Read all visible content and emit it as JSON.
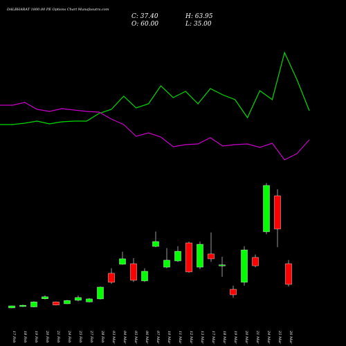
{
  "chart_data": {
    "type": "candlestick",
    "title": "DALBHARAT 1800.00 PE Options Chart Munafasutra.com",
    "stats": [
      "C: 37.40",
      "O: 60.00",
      "H: 63.95",
      "L: 35.00"
    ],
    "categories": [
      "17 Feb",
      "18 Feb",
      "19 Feb",
      "20 Feb",
      "21 Feb",
      "24 Feb",
      "25 Feb",
      "27 Feb",
      "28 Feb",
      "03 Mar",
      "04 Mar",
      "05 Mar",
      "06 Mar",
      "07 Mar",
      "10 Mar",
      "11 Mar",
      "12 Mar",
      "13 Mar",
      "17 Mar",
      "18 Mar",
      "19 Mar",
      "20 Mar",
      "21 Mar",
      "24 Mar",
      "25 Mar",
      "26 Mar"
    ],
    "open": [
      11.8,
      13.3,
      12.9,
      21.7,
      18.3,
      16.3,
      20.1,
      18.3,
      21.6,
      49.5,
      59.3,
      60,
      41.2,
      78.8,
      56.2,
      63,
      82.6,
      56.2,
      70.6,
      57.7,
      32.1,
      39.7,
      66.8,
      94.7,
      133.9,
      60
    ],
    "high": [
      14.3,
      15.2,
      19,
      25.5,
      18.8,
      20.5,
      25.3,
      22.5,
      35,
      55,
      73,
      66,
      55,
      95,
      77,
      79,
      84,
      84,
      94,
      67.5,
      36,
      79,
      70,
      147.8,
      141,
      63.95
    ],
    "low": [
      11.5,
      12.8,
      12.5,
      21,
      14.5,
      16,
      19,
      18,
      21,
      38,
      59,
      40,
      40,
      78,
      55,
      62,
      50,
      54,
      62,
      45.7,
      23,
      36,
      56,
      92,
      78,
      35
    ],
    "close": [
      14,
      14.7,
      18.3,
      23.9,
      15,
      19.8,
      23.1,
      21.6,
      34.4,
      39.7,
      65.3,
      41.9,
      51.7,
      84.1,
      63.8,
      73.5,
      51,
      81.1,
      65.3,
      58.7,
      26.1,
      75,
      57.7,
      145.2,
      97.7,
      37.4
    ],
    "up_color": "#00ff00",
    "down_color": "#ff0000",
    "ylim": [
      0,
      150
    ],
    "indicators": {
      "ylim": [
        0,
        110
      ],
      "series": [
        {
          "color": "#00dd00",
          "values": [
            50,
            50,
            51,
            52.5,
            50.5,
            52,
            52.5,
            52.5,
            58,
            61,
            70.5,
            62,
            65,
            78,
            69.5,
            74,
            65,
            76,
            71.5,
            68,
            55,
            74.5,
            68,
            102,
            82.5,
            60
          ]
        },
        {
          "color": "#cc00cc",
          "values": [
            64,
            64,
            66,
            61,
            59.5,
            61.5,
            60.5,
            59.5,
            59,
            54,
            50,
            41.5,
            44,
            41,
            34,
            35.5,
            36,
            40.5,
            34.5,
            35.5,
            36,
            33.5,
            36.5,
            24.5,
            29,
            39
          ]
        }
      ]
    }
  }
}
